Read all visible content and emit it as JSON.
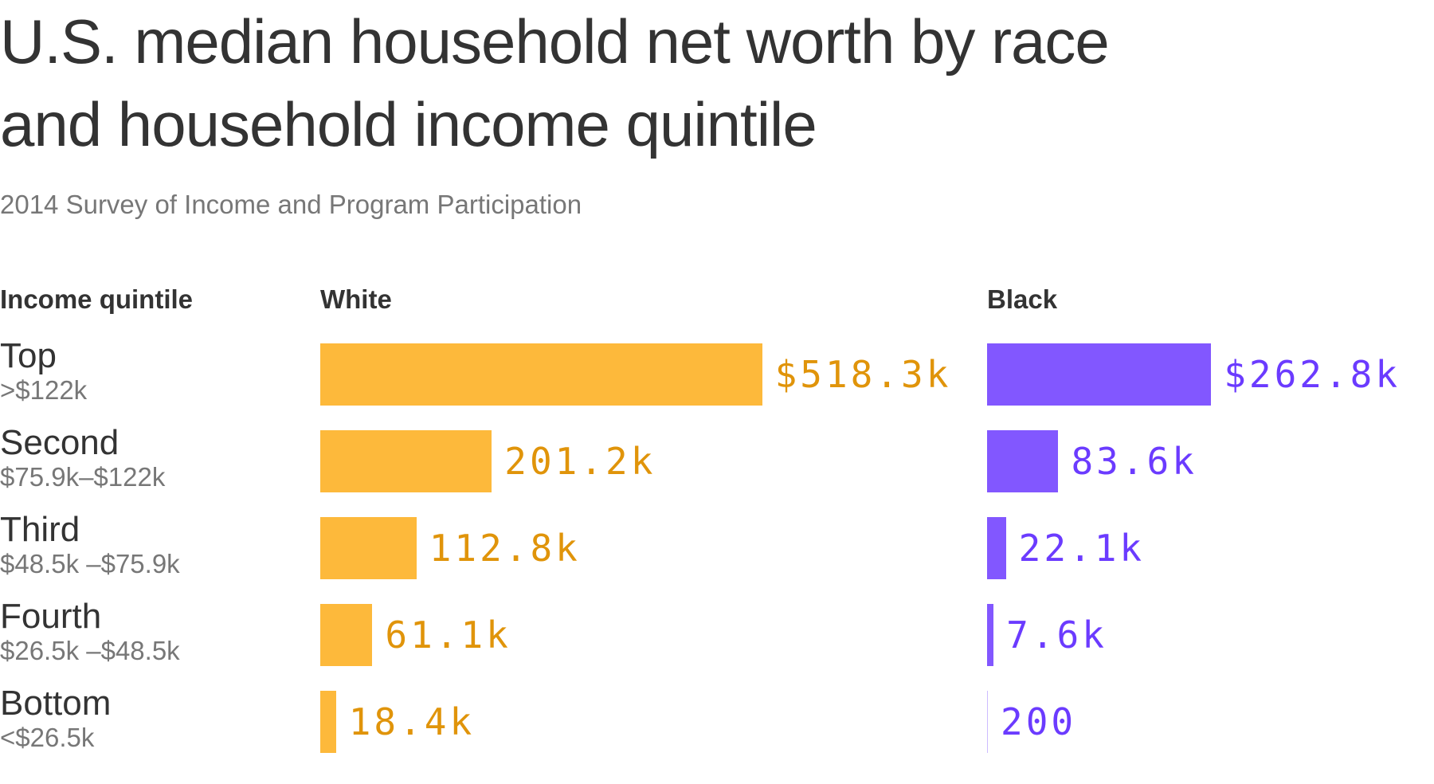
{
  "title": "U.S. median household net worth by race and household income quintile",
  "subtitle": "2014 Survey of Income and Program Participation",
  "colors": {
    "white_bar": "#FDB93B",
    "white_label": "#E0940A",
    "black_bar": "#8257FF",
    "black_label": "#6B3BFF"
  },
  "chart_data": {
    "type": "bar",
    "title": "U.S. median household net worth by race and household income quintile",
    "subtitle": "2014 Survey of Income and Program Participation",
    "category_header": "Income quintile",
    "categories": [
      "Top",
      "Second",
      "Third",
      "Fourth",
      "Bottom"
    ],
    "category_ranges": [
      ">$122k",
      "$75.9k–$122k",
      "$48.5k –$75.9k",
      "$26.5k –$48.5k",
      "<$26.5k"
    ],
    "units": "thousands of dollars",
    "series": [
      {
        "name": "White",
        "values": [
          518.3,
          201.2,
          112.8,
          61.1,
          18.4
        ],
        "labels": [
          "$518.3k",
          "201.2k",
          "112.8k",
          "61.1k",
          "18.4k"
        ]
      },
      {
        "name": "Black",
        "values": [
          262.8,
          83.6,
          22.1,
          7.6,
          0.2
        ],
        "labels": [
          "$262.8k",
          "83.6k",
          "22.1k",
          "7.6k",
          "200"
        ]
      }
    ]
  }
}
